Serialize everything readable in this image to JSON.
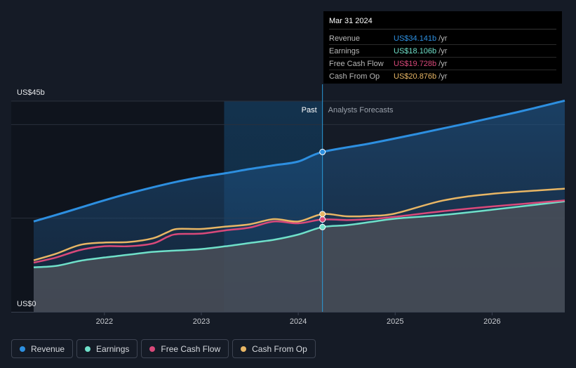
{
  "chart_data": {
    "type": "area",
    "y_axis": {
      "top_label": "US$45b",
      "bottom_label": "US$0",
      "ylim": [
        0,
        45
      ]
    },
    "x_ticks": [
      "2022",
      "2023",
      "2024",
      "2025",
      "2026"
    ],
    "x_range": [
      2021.27,
      2026.75
    ],
    "divider_x": 2024.25,
    "past_label": "Past",
    "forecast_label": "Analysts Forecasts",
    "series": [
      {
        "name": "Revenue",
        "color": "#2d8fe0",
        "x": [
          2021.27,
          2021.6,
          2021.9,
          2022.2,
          2022.5,
          2022.75,
          2023.0,
          2023.25,
          2023.5,
          2023.75,
          2024.0,
          2024.25,
          2024.75,
          2025.25,
          2025.75,
          2026.25,
          2026.75
        ],
        "y": [
          19.3,
          21.3,
          23.2,
          25.0,
          26.6,
          27.8,
          28.8,
          29.6,
          30.5,
          31.3,
          32.1,
          34.141,
          36.0,
          38.1,
          40.3,
          42.6,
          45.1
        ]
      },
      {
        "name": "Earnings",
        "color": "#6fe0c9",
        "x": [
          2021.27,
          2021.5,
          2021.75,
          2022.0,
          2022.25,
          2022.5,
          2022.75,
          2023.0,
          2023.25,
          2023.5,
          2023.75,
          2024.0,
          2024.25,
          2024.5,
          2024.75,
          2025.0,
          2025.5,
          2026.0,
          2026.75
        ],
        "y": [
          9.5,
          9.8,
          10.9,
          11.6,
          12.2,
          12.8,
          13.1,
          13.4,
          14.0,
          14.7,
          15.4,
          16.5,
          18.106,
          18.5,
          19.2,
          19.9,
          20.7,
          21.8,
          23.6
        ]
      },
      {
        "name": "Free Cash Flow",
        "color": "#d9497a",
        "x": [
          2021.27,
          2021.5,
          2021.75,
          2022.0,
          2022.25,
          2022.5,
          2022.65,
          2022.75,
          2023.0,
          2023.25,
          2023.5,
          2023.75,
          2024.0,
          2024.25,
          2024.5,
          2024.75,
          2025.0,
          2025.5,
          2026.0,
          2026.75
        ],
        "y": [
          10.5,
          11.6,
          13.2,
          14.0,
          14.0,
          14.6,
          16.0,
          16.6,
          16.7,
          17.4,
          18.0,
          19.3,
          18.9,
          19.728,
          19.6,
          19.8,
          20.3,
          21.5,
          22.5,
          23.8
        ]
      },
      {
        "name": "Cash From Op",
        "color": "#e8b665",
        "x": [
          2021.27,
          2021.5,
          2021.75,
          2022.0,
          2022.25,
          2022.5,
          2022.65,
          2022.75,
          2023.0,
          2023.25,
          2023.5,
          2023.75,
          2024.0,
          2024.25,
          2024.5,
          2024.75,
          2025.0,
          2025.5,
          2026.0,
          2026.75
        ],
        "y": [
          11.0,
          12.4,
          14.3,
          14.8,
          14.9,
          15.7,
          17.0,
          17.7,
          17.7,
          18.2,
          18.7,
          19.8,
          19.3,
          20.876,
          20.4,
          20.5,
          21.0,
          23.8,
          25.2,
          26.3
        ]
      }
    ]
  },
  "tooltip": {
    "date": "Mar 31 2024",
    "rows": [
      {
        "label": "Revenue",
        "value": "US$34.141b",
        "unit": "/yr",
        "color": "#2d8fe0"
      },
      {
        "label": "Earnings",
        "value": "US$18.106b",
        "unit": "/yr",
        "color": "#6fe0c9"
      },
      {
        "label": "Free Cash Flow",
        "value": "US$19.728b",
        "unit": "/yr",
        "color": "#d9497a"
      },
      {
        "label": "Cash From Op",
        "value": "US$20.876b",
        "unit": "/yr",
        "color": "#e8b665"
      }
    ]
  },
  "legend": [
    {
      "label": "Revenue",
      "color": "#2d8fe0"
    },
    {
      "label": "Earnings",
      "color": "#6fe0c9"
    },
    {
      "label": "Free Cash Flow",
      "color": "#d9497a"
    },
    {
      "label": "Cash From Op",
      "color": "#e8b665"
    }
  ]
}
